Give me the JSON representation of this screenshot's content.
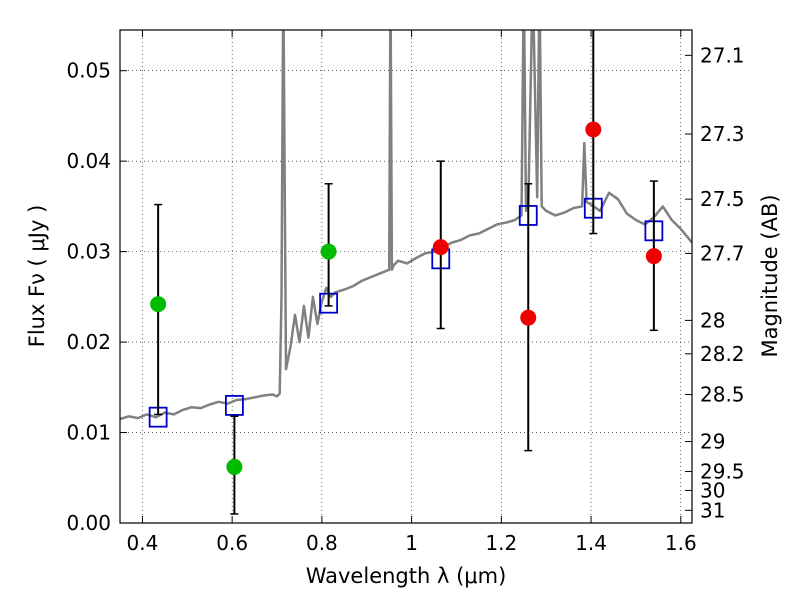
{
  "chart_data": {
    "type": "scatter",
    "title": "",
    "xlabel": "Wavelength  λ (μm)",
    "ylabel": "Flux  Fν  ( μJy )",
    "y2label": "Magnitude (AB)",
    "xlim": [
      0.35,
      1.625
    ],
    "ylim": [
      0.0,
      0.0545
    ],
    "grid": true,
    "x_ticks": [
      0.4,
      0.6,
      0.8,
      1.0,
      1.2,
      1.4,
      1.6
    ],
    "x_tick_labels": [
      "0.4",
      "0.6",
      "0.8",
      "1",
      "1.2",
      "1.4",
      "1.6"
    ],
    "y_ticks": [
      0.0,
      0.01,
      0.02,
      0.03,
      0.04,
      0.05
    ],
    "y_tick_labels": [
      "0.00",
      "0.01",
      "0.02",
      "0.03",
      "0.04",
      "0.05"
    ],
    "y2_ticks": [
      {
        "label": "27.1",
        "flux": 0.0517
      },
      {
        "label": "27.3",
        "flux": 0.043
      },
      {
        "label": "27.5",
        "flux": 0.0358
      },
      {
        "label": "27.7",
        "flux": 0.0298
      },
      {
        "label": "28",
        "flux": 0.0224
      },
      {
        "label": "28.2",
        "flux": 0.0187
      },
      {
        "label": "28.5",
        "flux": 0.0142
      },
      {
        "label": "29",
        "flux": 0.009
      },
      {
        "label": "29.5",
        "flux": 0.0057
      },
      {
        "label": "30",
        "flux": 0.0036
      },
      {
        "label": "31",
        "flux": 0.0014
      }
    ],
    "colors": {
      "spectrum": "#808080",
      "model_box": "#0000cc",
      "green_obs": "#00bb00",
      "red_obs": "#ee0000",
      "errorbar": "#000000"
    },
    "series": [
      {
        "kind": "line",
        "x": [
          0.35,
          0.37,
          0.39,
          0.41,
          0.43,
          0.45,
          0.47,
          0.49,
          0.51,
          0.53,
          0.55,
          0.57,
          0.59,
          0.61,
          0.63,
          0.65,
          0.67,
          0.69,
          0.7,
          0.706,
          0.71,
          0.714,
          0.72,
          0.73,
          0.74,
          0.75,
          0.76,
          0.77,
          0.78,
          0.79,
          0.8,
          0.81,
          0.82,
          0.83,
          0.85,
          0.87,
          0.89,
          0.91,
          0.93,
          0.95,
          0.953,
          0.956,
          0.96,
          0.97,
          0.99,
          1.01,
          1.03,
          1.05,
          1.07,
          1.09,
          1.11,
          1.13,
          1.15,
          1.17,
          1.19,
          1.21,
          1.23,
          1.245,
          1.25,
          1.255,
          1.26,
          1.27,
          1.28,
          1.285,
          1.29,
          1.3,
          1.32,
          1.34,
          1.36,
          1.38,
          1.385,
          1.39,
          1.4,
          1.42,
          1.44,
          1.46,
          1.48,
          1.5,
          1.52,
          1.54,
          1.56,
          1.58,
          1.6,
          1.625
        ],
        "y": [
          0.0115,
          0.0118,
          0.0116,
          0.012,
          0.0117,
          0.0122,
          0.012,
          0.0125,
          0.0128,
          0.0127,
          0.0131,
          0.0134,
          0.0132,
          0.0136,
          0.0137,
          0.0139,
          0.0141,
          0.0142,
          0.014,
          0.0143,
          0.025,
          0.06,
          0.017,
          0.0195,
          0.023,
          0.02,
          0.024,
          0.0205,
          0.025,
          0.022,
          0.0245,
          0.026,
          0.025,
          0.0255,
          0.0258,
          0.0262,
          0.0268,
          0.0272,
          0.0276,
          0.028,
          0.06,
          0.028,
          0.0285,
          0.029,
          0.0287,
          0.0293,
          0.0298,
          0.03,
          0.0305,
          0.031,
          0.0313,
          0.0318,
          0.032,
          0.0325,
          0.033,
          0.0332,
          0.0335,
          0.034,
          0.06,
          0.0345,
          0.035,
          0.06,
          0.036,
          0.06,
          0.035,
          0.0345,
          0.034,
          0.0343,
          0.0348,
          0.035,
          0.042,
          0.0355,
          0.0352,
          0.0345,
          0.0365,
          0.0358,
          0.0342,
          0.0335,
          0.033,
          0.0338,
          0.035,
          0.0335,
          0.0325,
          0.031
        ]
      },
      {
        "kind": "model_boxes",
        "x": [
          0.435,
          0.605,
          0.815,
          1.065,
          1.26,
          1.405,
          1.54
        ],
        "y": [
          0.0117,
          0.013,
          0.0243,
          0.0292,
          0.034,
          0.0348,
          0.0323
        ]
      },
      {
        "kind": "errorbars",
        "x": [
          0.435,
          0.605,
          0.815,
          1.065,
          1.26,
          1.405,
          1.54
        ],
        "low": [
          0.012,
          0.001,
          0.024,
          0.0215,
          0.008,
          0.032,
          0.0213
        ],
        "high": [
          0.0352,
          0.0118,
          0.0375,
          0.04,
          0.0375,
          0.0555,
          0.0378
        ]
      },
      {
        "kind": "points_green",
        "x": [
          0.435,
          0.605,
          0.815
        ],
        "y": [
          0.0242,
          0.0062,
          0.03
        ]
      },
      {
        "kind": "points_red",
        "x": [
          1.065,
          1.26,
          1.405,
          1.54
        ],
        "y": [
          0.0305,
          0.0227,
          0.0435,
          0.0295
        ]
      }
    ]
  }
}
